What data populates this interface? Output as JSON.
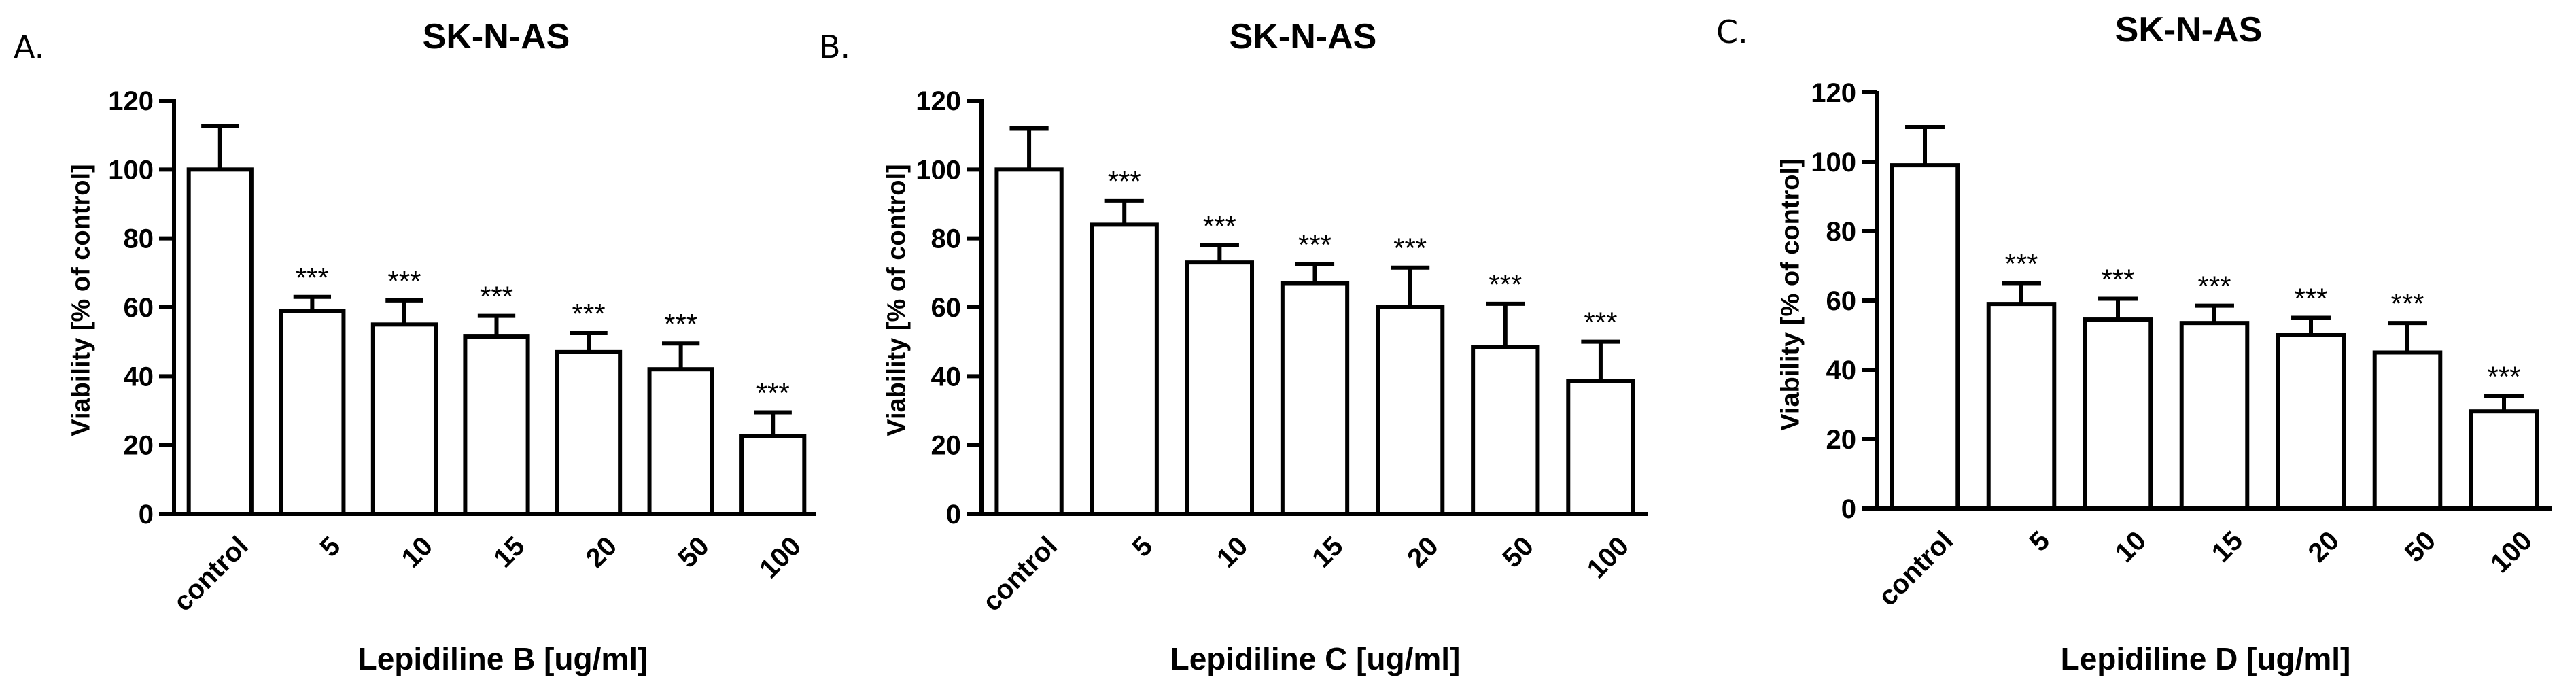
{
  "chart_data": [
    {
      "type": "bar",
      "panel_label": "A.",
      "title": "SK-N-AS",
      "xlabel": "Lepidiline B [ug/ml]",
      "ylabel": "Viability [% of control]",
      "ylim": [
        0,
        120
      ],
      "yticks": [
        "0",
        "20",
        "40",
        "60",
        "80",
        "100",
        "120"
      ],
      "categories": [
        "control",
        "5",
        "10",
        "15",
        "20",
        "50",
        "100"
      ],
      "values": [
        100,
        59,
        55,
        51.5,
        47,
        42,
        22.5
      ],
      "error_upper": [
        12.5,
        4,
        7,
        6,
        5.5,
        7.5,
        7
      ],
      "significance": [
        "",
        "***",
        "***",
        "***",
        "***",
        "***",
        "***"
      ]
    },
    {
      "type": "bar",
      "panel_label": "B.",
      "title": "SK-N-AS",
      "xlabel": "Lepidiline C [ug/ml]",
      "ylabel": "Viability [% of control]",
      "ylim": [
        0,
        120
      ],
      "yticks": [
        "0",
        "20",
        "40",
        "60",
        "80",
        "100",
        "120"
      ],
      "categories": [
        "control",
        "5",
        "10",
        "15",
        "20",
        "50",
        "100"
      ],
      "values": [
        100,
        84,
        73,
        67,
        60,
        48.5,
        38.5
      ],
      "error_upper": [
        12,
        7,
        5,
        5.5,
        11.5,
        12.5,
        11.5
      ],
      "significance": [
        "",
        "***",
        "***",
        "***",
        "***",
        "***",
        "***"
      ]
    },
    {
      "type": "bar",
      "panel_label": "C.",
      "title": "SK-N-AS",
      "xlabel": "Lepidiline D [ug/ml]",
      "ylabel": "Viability [% of control]",
      "ylim": [
        0,
        120
      ],
      "yticks": [
        "0",
        "20",
        "40",
        "60",
        "80",
        "100",
        "120"
      ],
      "categories": [
        "control",
        "5",
        "10",
        "15",
        "20",
        "50",
        "100"
      ],
      "values": [
        99,
        59,
        54.5,
        53.5,
        50,
        45,
        28
      ],
      "error_upper": [
        11,
        6,
        6,
        5,
        5,
        8.5,
        4.5
      ],
      "significance": [
        "",
        "***",
        "***",
        "***",
        "***",
        "***",
        "***"
      ]
    }
  ]
}
